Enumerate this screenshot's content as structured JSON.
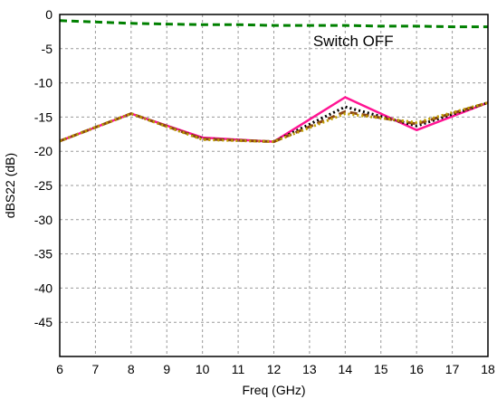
{
  "chart_data": {
    "type": "line",
    "xlabel": "Freq (GHz)",
    "ylabel": "dBS22 (dB)",
    "xlim": [
      6,
      18
    ],
    "ylim": [
      -50,
      0
    ],
    "xticks": [
      6,
      7,
      8,
      9,
      10,
      11,
      12,
      13,
      14,
      15,
      16,
      17,
      18
    ],
    "yticks": [
      0,
      -5,
      -10,
      -15,
      -20,
      -25,
      -30,
      -35,
      -40,
      -45
    ],
    "grid": true,
    "annotations": [
      {
        "text": "Switch OFF",
        "x": 13.1,
        "y": -5
      }
    ],
    "series": [
      {
        "color": "#008000",
        "dash": "dashed",
        "x": [
          6,
          7,
          8,
          9,
          10,
          11,
          12,
          13,
          14,
          15,
          16,
          17,
          18
        ],
        "y": [
          -0.9,
          -1.1,
          -1.3,
          -1.4,
          -1.5,
          -1.5,
          -1.6,
          -1.6,
          -1.6,
          -1.7,
          -1.7,
          -1.8,
          -1.8
        ]
      },
      {
        "color": "#ff1493",
        "dash": "solid",
        "x": [
          6,
          8,
          10,
          12,
          14,
          16,
          18
        ],
        "y": [
          -18.5,
          -14.5,
          -18.0,
          -18.6,
          -12.1,
          -16.9,
          -12.9
        ]
      },
      {
        "color": "#000000",
        "dash": "dotted",
        "x": [
          6,
          8,
          10,
          12,
          14,
          16,
          18
        ],
        "y": [
          -18.5,
          -14.5,
          -18.2,
          -18.6,
          -13.5,
          -16.3,
          -12.9
        ]
      },
      {
        "color": "#8b4513",
        "dash": "dashed",
        "x": [
          6,
          8,
          10,
          12,
          14,
          16,
          18
        ],
        "y": [
          -18.5,
          -14.5,
          -18.2,
          -18.6,
          -14.2,
          -16.0,
          -12.9
        ]
      },
      {
        "color": "#c0a000",
        "dash": "dotted",
        "x": [
          6,
          8,
          10,
          12,
          14,
          16,
          18
        ],
        "y": [
          -18.5,
          -14.5,
          -18.3,
          -18.6,
          -14.5,
          -15.8,
          -12.9
        ]
      }
    ]
  }
}
